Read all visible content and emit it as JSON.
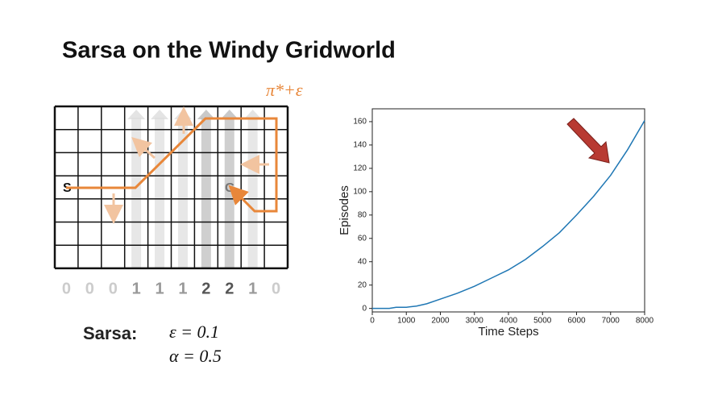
{
  "title": "Sarsa on the Windy Gridworld",
  "annotation": "π*+ε",
  "gridworld": {
    "start": "S",
    "goal": "G",
    "wind": [
      "0",
      "0",
      "0",
      "1",
      "1",
      "1",
      "2",
      "2",
      "1",
      "0"
    ]
  },
  "params": {
    "label": "Sarsa:",
    "epsilon": "ε = 0.1",
    "alpha": "α = 0.5"
  },
  "chart_data": {
    "type": "line",
    "x_label": "Time Steps",
    "y_label": "Episodes",
    "x": [
      0,
      500,
      700,
      1000,
      1300,
      1600,
      2000,
      2500,
      3000,
      3500,
      4000,
      4500,
      5000,
      5500,
      6000,
      6500,
      7000,
      7500,
      8000
    ],
    "series": [
      {
        "name": "Sarsa",
        "color": "#1f77b4",
        "values": [
          0,
          0,
          1,
          1,
          2,
          4,
          8,
          13,
          19,
          26,
          33,
          42,
          53,
          65,
          80,
          96,
          114,
          136,
          161
        ]
      }
    ],
    "xlim": [
      0,
      8000
    ],
    "ylim": [
      -3,
      171
    ],
    "xticks": [
      0,
      1000,
      2000,
      3000,
      4000,
      5000,
      6000,
      7000,
      8000
    ],
    "yticks": [
      0,
      20,
      40,
      60,
      80,
      100,
      120,
      140,
      160
    ]
  }
}
